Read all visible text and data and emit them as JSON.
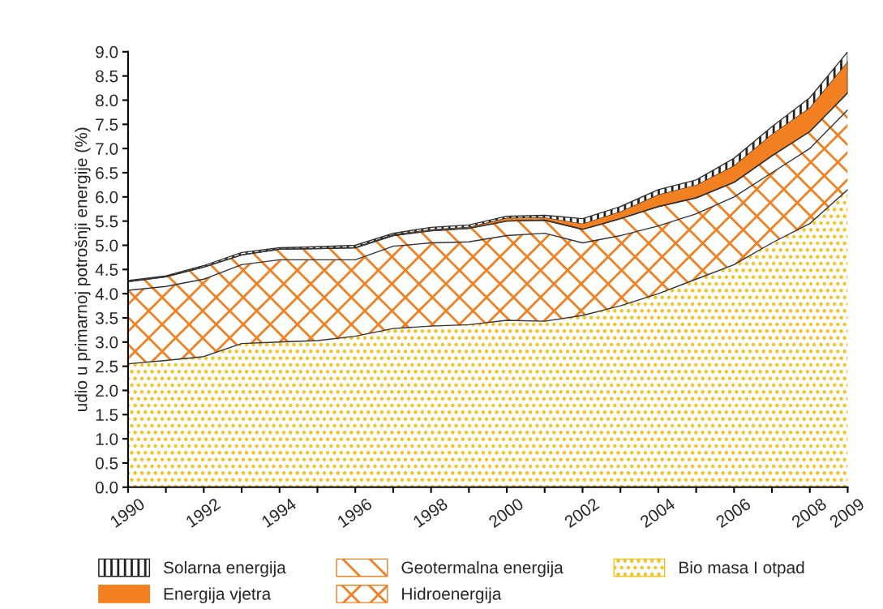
{
  "chart_data": {
    "type": "area",
    "stacked": true,
    "ylabel": "udio u primarnoj potrošnji energije (%)",
    "x": [
      1990,
      1991,
      1992,
      1993,
      1994,
      1995,
      1996,
      1997,
      1998,
      1999,
      2000,
      2001,
      2002,
      2003,
      2004,
      2005,
      2006,
      2007,
      2008,
      2009
    ],
    "series": [
      {
        "name": "Bio masa I otpad",
        "color": "#f5c21b",
        "values": [
          2.55,
          2.62,
          2.7,
          2.97,
          3.0,
          3.03,
          3.12,
          3.28,
          3.33,
          3.36,
          3.45,
          3.43,
          3.55,
          3.75,
          4.0,
          4.3,
          4.6,
          5.05,
          5.45,
          6.15
        ]
      },
      {
        "name": "Hidroenergija",
        "color": "#f28020",
        "values": [
          1.52,
          1.53,
          1.6,
          1.63,
          1.7,
          1.67,
          1.58,
          1.7,
          1.72,
          1.71,
          1.75,
          1.82,
          1.5,
          1.45,
          1.4,
          1.35,
          1.4,
          1.45,
          1.55,
          1.65
        ]
      },
      {
        "name": "Geotermalna energija",
        "color": "#f28020",
        "values": [
          0.18,
          0.2,
          0.25,
          0.2,
          0.22,
          0.23,
          0.25,
          0.22,
          0.25,
          0.28,
          0.3,
          0.27,
          0.28,
          0.35,
          0.4,
          0.33,
          0.3,
          0.35,
          0.35,
          0.35
        ]
      },
      {
        "name": "Energija vjetra",
        "color": "#f28020",
        "values": [
          0.01,
          0.01,
          0.01,
          0.01,
          0.01,
          0.01,
          0.01,
          0.03,
          0.03,
          0.03,
          0.07,
          0.06,
          0.12,
          0.15,
          0.25,
          0.27,
          0.35,
          0.45,
          0.5,
          0.65
        ]
      },
      {
        "name": "Solarna energija",
        "color": "#222222",
        "values": [
          0.01,
          0.01,
          0.02,
          0.04,
          0.02,
          0.03,
          0.04,
          0.02,
          0.04,
          0.04,
          0.03,
          0.04,
          0.1,
          0.1,
          0.1,
          0.1,
          0.15,
          0.15,
          0.2,
          0.2
        ]
      }
    ],
    "xlim": [
      1990,
      2009
    ],
    "xticks": [
      1990,
      {
        "value": 1991,
        "label": null
      },
      1992,
      {
        "value": 1993,
        "label": null
      },
      1994,
      {
        "value": 1995,
        "label": null
      },
      1996,
      {
        "value": 1997,
        "label": null
      },
      1998,
      {
        "value": 1999,
        "label": null
      },
      2000,
      {
        "value": 2001,
        "label": null
      },
      2002,
      {
        "value": 2003,
        "label": null
      },
      2004,
      {
        "value": 2005,
        "label": null
      },
      2006,
      {
        "value": 2007,
        "label": null
      },
      2008,
      2009
    ],
    "ylim": [
      0,
      9
    ],
    "yticks": [
      {
        "value": 0,
        "label": "0.0"
      },
      {
        "value": 0.5,
        "label": "0.5"
      },
      {
        "value": 1,
        "label": "1.0"
      },
      {
        "value": 1.5,
        "label": "1.5"
      },
      {
        "value": 2,
        "label": "2.0"
      },
      {
        "value": 2.5,
        "label": "2.5"
      },
      {
        "value": 3,
        "label": "3.0"
      },
      {
        "value": 3.5,
        "label": "3.5"
      },
      {
        "value": 4,
        "label": "4.0"
      },
      {
        "value": 4.5,
        "label": "4.5"
      },
      {
        "value": 5,
        "label": "5.0"
      },
      {
        "value": 5.5,
        "label": "5.5"
      },
      {
        "value": 6,
        "label": "6.0"
      },
      {
        "value": 6.5,
        "label": "6.5"
      },
      {
        "value": 7,
        "label": "7.0"
      },
      {
        "value": 7.5,
        "label": "7.5"
      },
      {
        "value": 8,
        "label": "8.0"
      },
      {
        "value": 8.5,
        "label": "8.5"
      },
      {
        "value": 9,
        "label": "9.0"
      }
    ],
    "grid": false,
    "legend": "bottom"
  }
}
